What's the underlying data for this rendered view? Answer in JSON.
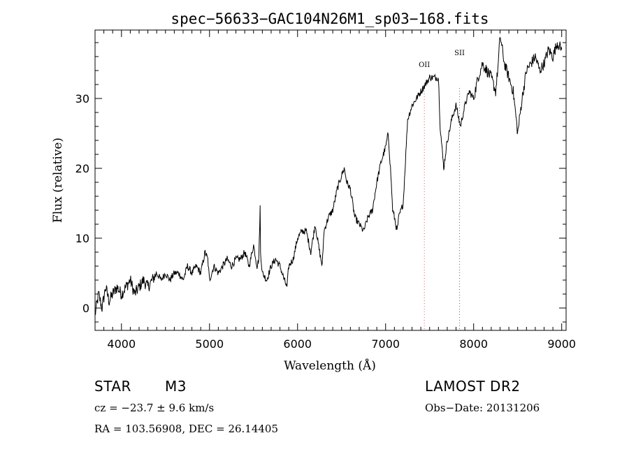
{
  "chart_data": {
    "type": "line",
    "title": "spec−56633−GAC104N26M1_sp03−168.fits",
    "xlabel": "Wavelength (Å)",
    "ylabel": "Flux (relative)",
    "xlim": [
      3700,
      9050
    ],
    "ylim": [
      -3.2,
      39.8
    ],
    "x_ticks": [
      4000,
      5000,
      6000,
      7000,
      8000,
      9000
    ],
    "y_ticks": [
      0,
      10,
      20,
      30
    ],
    "grid": false,
    "line_color": "#000000",
    "lines": [
      {
        "label": "OII",
        "x": 7440,
        "color": "#c06060"
      },
      {
        "label": "SII",
        "x": 7840,
        "color": "#606060"
      }
    ],
    "series": [
      {
        "x": [
          3700,
          3740,
          3780,
          3820,
          3860,
          3900,
          3950,
          4000,
          4050,
          4100,
          4150,
          4200,
          4250,
          4300,
          4350,
          4400,
          4450,
          4500,
          4550,
          4600,
          4650,
          4700,
          4750,
          4800,
          4850,
          4900,
          4950,
          4980,
          5000,
          5050,
          5100,
          5150,
          5200,
          5250,
          5300,
          5350,
          5400,
          5450,
          5500,
          5540,
          5560,
          5575,
          5580,
          5600,
          5650,
          5700,
          5750,
          5800,
          5850,
          5880,
          5900,
          5950,
          6000,
          6050,
          6100,
          6150,
          6200,
          6250,
          6280,
          6300,
          6350,
          6400,
          6450,
          6500,
          6530,
          6560,
          6600,
          6650,
          6700,
          6750,
          6800,
          6850,
          6900,
          6950,
          7000,
          7030,
          7060,
          7080,
          7100,
          7130,
          7150,
          7200,
          7250,
          7300,
          7350,
          7400,
          7450,
          7500,
          7550,
          7600,
          7620,
          7640,
          7660,
          7680,
          7700,
          7720,
          7750,
          7800,
          7850,
          7900,
          7950,
          8000,
          8050,
          8100,
          8150,
          8200,
          8250,
          8280,
          8300,
          8350,
          8400,
          8450,
          8500,
          8550,
          8600,
          8650,
          8700,
          8750,
          8800,
          8850,
          8900,
          8950,
          9000
        ],
        "y": [
          -1,
          2,
          0,
          3,
          1,
          2,
          3,
          2,
          3,
          4,
          2,
          3,
          4,
          3,
          4,
          5,
          4,
          5,
          4,
          5,
          5,
          4,
          6,
          5,
          6,
          5,
          8,
          7,
          4,
          6,
          5,
          6,
          7,
          6,
          7,
          7,
          8,
          6,
          9,
          6,
          7,
          14.5,
          8,
          5,
          4,
          6,
          7,
          6,
          4,
          3,
          6,
          7,
          10,
          11,
          11,
          8,
          12,
          8,
          6,
          11,
          13,
          14,
          17,
          19,
          20,
          18,
          17,
          13,
          12,
          11,
          13,
          14,
          18,
          21,
          23,
          25,
          19,
          14,
          13,
          11,
          13,
          15,
          27,
          29,
          30,
          31,
          32,
          33,
          33,
          33,
          26,
          23,
          20,
          22,
          24,
          25,
          27,
          29,
          26,
          29,
          31,
          30,
          33,
          35,
          34,
          33,
          31,
          35,
          39,
          35,
          33,
          31,
          25,
          30,
          34,
          35,
          36,
          34,
          35,
          37,
          36,
          38,
          37
        ]
      }
    ]
  },
  "info": {
    "class_label": "STAR",
    "subclass": "M3",
    "survey": "LAMOST DR2",
    "cz": "cz = −23.7 ± 9.6 km/s",
    "obs_date": "Obs−Date: 20131206",
    "radec": "RA = 103.56908, DEC =  26.14405"
  }
}
